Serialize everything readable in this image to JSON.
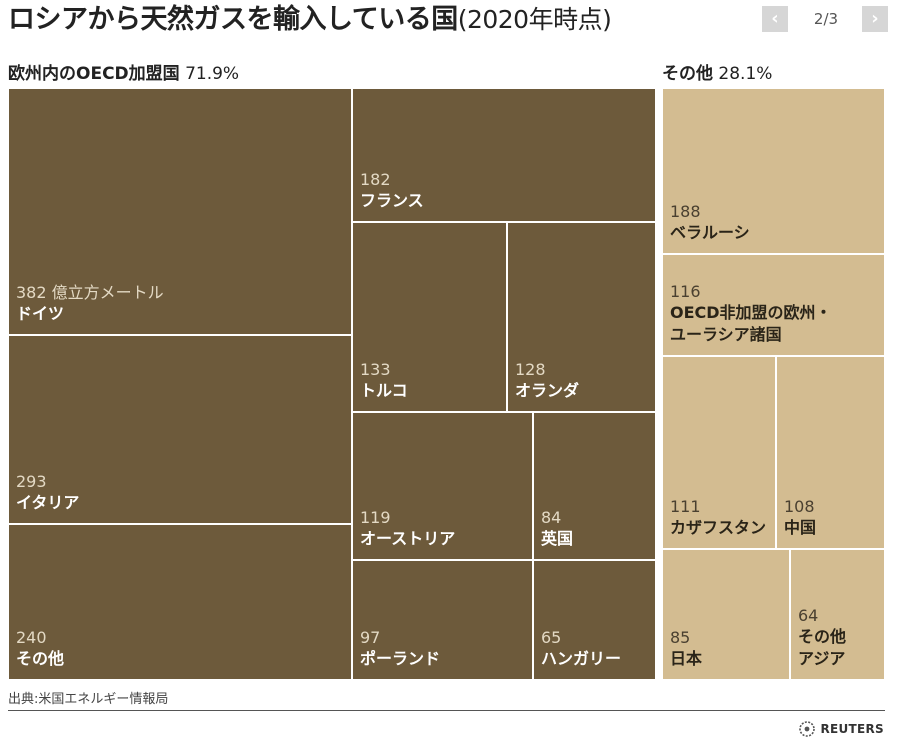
{
  "header": {
    "title": "ロシアから天然ガスを輸入している国",
    "title_suffix": "(2020年時点)",
    "page_indicator": "2/3",
    "prev_icon": "chevron-left-icon",
    "next_icon": "chevron-right-icon"
  },
  "groups": [
    {
      "name": "欧州内のOECD加盟国",
      "share": "71.9%"
    },
    {
      "name": "その他",
      "share": "28.1%"
    }
  ],
  "colors": {
    "oecd": "#6d5a3b",
    "other": "#d3bc91",
    "border": "#ffffff",
    "oecd_text": "#ffffff",
    "oecd_value_text": "#e3d9c4",
    "other_text": "#2a2418",
    "other_value_text": "#4a4030"
  },
  "chart_data": {
    "type": "treemap",
    "unit": "億立方メートル",
    "groups": [
      {
        "name": "欧州内のOECD加盟国",
        "share": "71.9%",
        "items": [
          {
            "name": "ドイツ",
            "value": 382,
            "value_label": "382 億立方メートル"
          },
          {
            "name": "イタリア",
            "value": 293,
            "value_label": "293"
          },
          {
            "name": "その他",
            "value": 240,
            "value_label": "240"
          },
          {
            "name": "フランス",
            "value": 182,
            "value_label": "182"
          },
          {
            "name": "トルコ",
            "value": 133,
            "value_label": "133"
          },
          {
            "name": "オランダ",
            "value": 128,
            "value_label": "128"
          },
          {
            "name": "オーストリア",
            "value": 119,
            "value_label": "119"
          },
          {
            "name": "英国",
            "value": 84,
            "value_label": "84"
          },
          {
            "name": "ポーランド",
            "value": 97,
            "value_label": "97"
          },
          {
            "name": "ハンガリー",
            "value": 65,
            "value_label": "65"
          }
        ]
      },
      {
        "name": "その他",
        "share": "28.1%",
        "items": [
          {
            "name": "ベラルーシ",
            "value": 188,
            "value_label": "188"
          },
          {
            "name": "OECD非加盟の欧州・ユーラシア諸国",
            "name_lines": [
              "OECD非加盟の欧州・",
              "ユーラシア諸国"
            ],
            "value": 116,
            "value_label": "116"
          },
          {
            "name": "カザフスタン",
            "value": 111,
            "value_label": "111"
          },
          {
            "name": "中国",
            "value": 108,
            "value_label": "108"
          },
          {
            "name": "日本",
            "value": 85,
            "value_label": "85"
          },
          {
            "name": "その他アジア",
            "name_lines": [
              "その他",
              "アジア"
            ],
            "value": 64,
            "value_label": "64"
          }
        ]
      }
    ]
  },
  "footer": {
    "source": "出典:米国エネルギー情報局",
    "logo_text": "REUTERS",
    "logo_icon": "reuters-logo-icon"
  }
}
